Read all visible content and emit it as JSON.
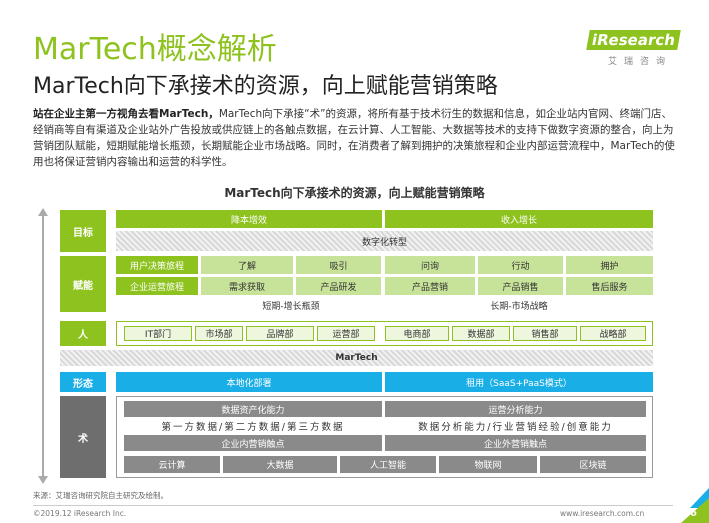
{
  "page": {
    "title": "MarTech概念解析",
    "subtitle": "MarTech向下承接术的资源，向上赋能营销策略",
    "logo_en": "iResearch",
    "logo_cn": "艾瑞咨询",
    "intro_bold": "站在企业主第一方视角去看MarTech，",
    "intro_rest": "MarTech向下承接“术”的资源，将所有基于技术衍生的数据和信息，如企业站内官网、终端门店、经销商等自有渠道及企业站外广告投放或供应链上的各触点数据，在云计算、人工智能、大数据等技术的支持下做数字资源的整合，向上为营销团队赋能，短期赋能增长瓶颈，长期赋能企业市场战略。同时，在消费者了解到拥护的决策旅程和企业内部运营流程中，MarTech的使用也将保证营销内容输出和运营的科学性。",
    "diagram_title": "MarTech向下承接术的资源，向上赋能营销策略"
  },
  "labels": {
    "goal": "目标",
    "empower": "赋能",
    "people": "人",
    "form": "形态",
    "tech": "术"
  },
  "goal": {
    "cost": "降本增效",
    "revenue": "收入增长",
    "band": "数字化转型"
  },
  "empower": {
    "row1_head": "用户决策旅程",
    "row1": [
      "了解",
      "吸引",
      "问询",
      "行动",
      "拥护"
    ],
    "row2_head": "企业运营旅程",
    "row2": [
      "需求获取",
      "产品研发",
      "产品营销",
      "产品销售",
      "售后服务"
    ],
    "short": "短期-增长瓶颈",
    "long": "长期-市场战略"
  },
  "people": [
    "IT部门",
    "市场部",
    "品牌部",
    "运营部",
    "电商部",
    "数据部",
    "销售部",
    "战略部"
  ],
  "martech_band": "MarTech",
  "form": {
    "local": "本地化部署",
    "rent": "租用（SaaS+PaaS模式）"
  },
  "tech": {
    "data_asset": "数据资产化能力",
    "data_sources": "第一方数据/第二方数据/第三方数据",
    "internal": "企业内营销触点",
    "ops_analysis": "运营分析能力",
    "analysis_caps": "数据分析能力/行业营销经验/创意能力",
    "external": "企业外营销触点",
    "infra": [
      "云计算",
      "大数据",
      "人工智能",
      "物联网",
      "区块链"
    ]
  },
  "footer": {
    "source": "来源：艾瑞咨询研究院自主研究及绘制。",
    "copyright": "©2019.12 iResearch Inc.",
    "site": "www.iresearch.com.cn",
    "page_num": "6"
  },
  "colors": {
    "brand_green": "#8dc21f",
    "brand_blue": "#1aaee7",
    "gray": "#8a8a8a"
  }
}
